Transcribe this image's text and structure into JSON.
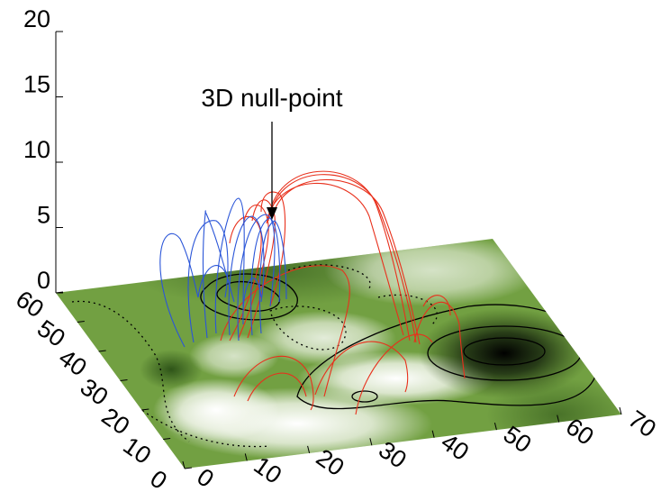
{
  "chart_data": {
    "type": "surface3d",
    "annotation": "3D null-point",
    "xlim": [
      0,
      70
    ],
    "xticks": [
      0,
      10,
      20,
      30,
      40,
      50,
      60,
      70
    ],
    "ylim": [
      0,
      60
    ],
    "yticks": [
      0,
      10,
      20,
      30,
      40,
      50,
      60
    ],
    "zlim": [
      0,
      20
    ],
    "zticks": [
      0,
      5,
      10,
      15,
      20
    ]
  }
}
